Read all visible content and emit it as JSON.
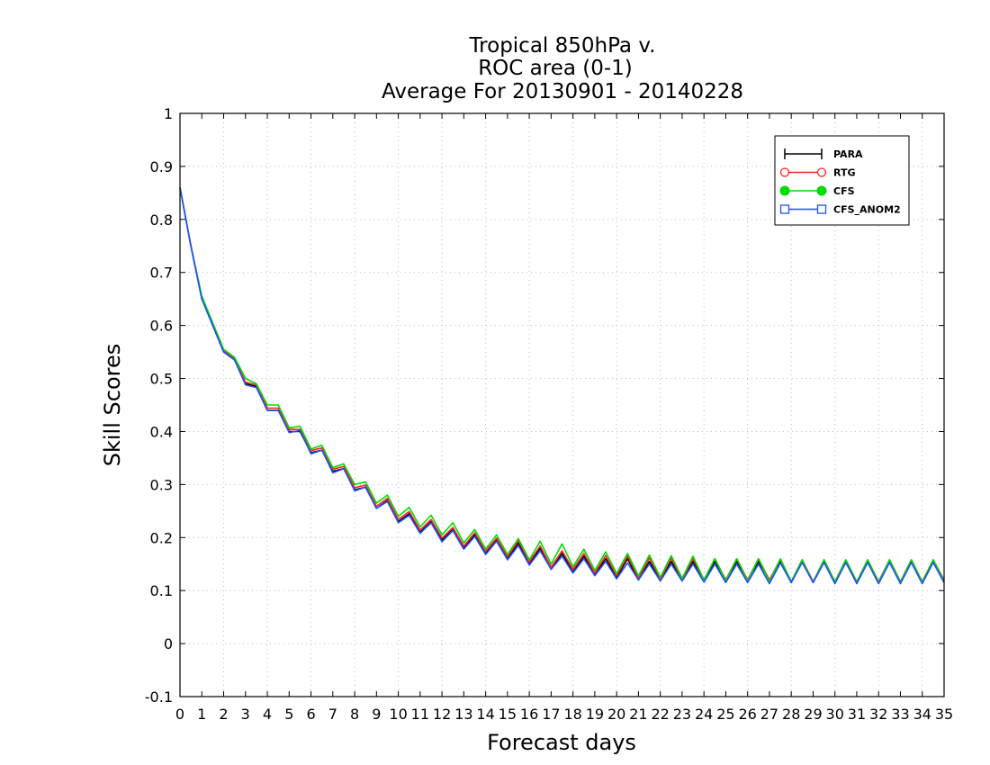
{
  "chart_data": {
    "type": "line",
    "title": [
      "Tropical 850hPa v.",
      "ROC area (0-1)",
      "Average For 20130901 - 20140228"
    ],
    "xlabel": "Forecast days",
    "ylabel": "Skill Scores",
    "xlim": [
      0,
      35
    ],
    "ylim": [
      -0.1,
      1
    ],
    "x_ticks": [
      0,
      1,
      2,
      3,
      4,
      5,
      6,
      7,
      8,
      9,
      10,
      11,
      12,
      13,
      14,
      15,
      16,
      17,
      18,
      19,
      20,
      21,
      22,
      23,
      24,
      25,
      26,
      27,
      28,
      29,
      30,
      31,
      32,
      33,
      34,
      35
    ],
    "y_ticks": [
      -0.1,
      0,
      0.1,
      0.2,
      0.3,
      0.4,
      0.5,
      0.6,
      0.7,
      0.8,
      0.9,
      1
    ],
    "y_tick_labels": [
      "-0.1",
      "0",
      "0.1",
      "0.2",
      "0.3",
      "0.4",
      "0.5",
      "0.6",
      "0.7",
      "0.8",
      "0.9",
      "1"
    ],
    "grid": true,
    "legend_position": "top-right",
    "x": [
      0,
      0.5,
      1,
      1.5,
      2,
      2.5,
      3,
      3.5,
      4,
      4.5,
      5,
      5.5,
      6,
      6.5,
      7,
      7.5,
      8,
      8.5,
      9,
      9.5,
      10,
      10.5,
      11,
      11.5,
      12,
      12.5,
      13,
      13.5,
      14,
      14.5,
      15,
      15.5,
      16,
      16.5,
      17,
      17.5,
      18,
      18.5,
      19,
      19.5,
      20,
      20.5,
      21,
      21.5,
      22,
      22.5,
      23,
      23.5,
      24,
      24.5,
      25,
      25.5,
      26,
      26.5,
      27,
      27.5,
      28,
      28.5,
      29,
      29.5,
      30,
      30.5,
      31,
      31.5,
      32,
      32.5,
      33,
      33.5,
      34,
      34.5,
      35
    ],
    "series": [
      {
        "name": "PARA",
        "color": "#000000",
        "marker": "plus",
        "values": [
          0.86,
          0.75,
          0.65,
          0.6,
          0.55,
          0.535,
          0.49,
          0.485,
          0.44,
          0.44,
          0.4,
          0.4,
          0.36,
          0.365,
          0.325,
          0.33,
          0.29,
          0.295,
          0.255,
          0.27,
          0.23,
          0.245,
          0.21,
          0.23,
          0.195,
          0.215,
          0.18,
          0.205,
          0.17,
          0.195,
          0.16,
          0.19,
          0.15,
          0.18,
          0.14,
          0.17,
          0.135,
          0.165,
          0.13,
          0.16,
          0.125,
          0.16,
          0.12,
          0.155,
          0.12,
          0.155,
          0.12,
          0.155,
          0.12,
          0.155,
          0.12,
          0.155,
          0.12,
          0.155,
          0.12,
          0.155,
          0.115,
          0.155,
          0.115,
          0.155,
          0.115,
          0.155,
          0.115,
          0.155,
          0.115,
          0.155,
          0.115,
          0.155,
          0.115,
          0.155,
          0.115
        ]
      },
      {
        "name": "RTG",
        "color": "#ff2020",
        "marker": "circle-open",
        "values": [
          0.86,
          0.75,
          0.652,
          0.602,
          0.552,
          0.538,
          0.493,
          0.488,
          0.444,
          0.444,
          0.404,
          0.404,
          0.364,
          0.369,
          0.329,
          0.334,
          0.294,
          0.299,
          0.259,
          0.274,
          0.234,
          0.249,
          0.214,
          0.234,
          0.199,
          0.219,
          0.184,
          0.209,
          0.174,
          0.199,
          0.164,
          0.194,
          0.154,
          0.184,
          0.144,
          0.175,
          0.14,
          0.17,
          0.133,
          0.166,
          0.128,
          0.165,
          0.124,
          0.162,
          0.122,
          0.161,
          0.121,
          0.16,
          0.12,
          0.16,
          0.12,
          0.16,
          0.12,
          0.16,
          0.12,
          0.159,
          0.117,
          0.158,
          0.117,
          0.158,
          0.117,
          0.158,
          0.117,
          0.158,
          0.117,
          0.158,
          0.117,
          0.158,
          0.117,
          0.158,
          0.12
        ]
      },
      {
        "name": "CFS",
        "color": "#00dd00",
        "marker": "circle-filled",
        "values": [
          0.86,
          0.75,
          0.655,
          0.605,
          0.555,
          0.54,
          0.5,
          0.49,
          0.45,
          0.45,
          0.407,
          0.41,
          0.367,
          0.374,
          0.332,
          0.339,
          0.3,
          0.305,
          0.265,
          0.28,
          0.24,
          0.257,
          0.22,
          0.242,
          0.205,
          0.228,
          0.19,
          0.215,
          0.178,
          0.205,
          0.168,
          0.198,
          0.158,
          0.193,
          0.15,
          0.188,
          0.145,
          0.178,
          0.138,
          0.173,
          0.132,
          0.17,
          0.128,
          0.167,
          0.125,
          0.166,
          0.123,
          0.165,
          0.12,
          0.16,
          0.118,
          0.16,
          0.118,
          0.16,
          0.117,
          0.16,
          0.117,
          0.158,
          0.116,
          0.158,
          0.116,
          0.158,
          0.116,
          0.158,
          0.116,
          0.158,
          0.116,
          0.158,
          0.116,
          0.158,
          0.118
        ]
      },
      {
        "name": "CFS_ANOM2",
        "color": "#2050ff",
        "marker": "square-open",
        "values": [
          0.86,
          0.75,
          0.65,
          0.6,
          0.55,
          0.535,
          0.488,
          0.483,
          0.44,
          0.44,
          0.398,
          0.402,
          0.358,
          0.365,
          0.322,
          0.33,
          0.288,
          0.295,
          0.255,
          0.268,
          0.228,
          0.242,
          0.208,
          0.228,
          0.192,
          0.213,
          0.178,
          0.202,
          0.168,
          0.193,
          0.158,
          0.185,
          0.148,
          0.175,
          0.14,
          0.165,
          0.133,
          0.16,
          0.128,
          0.155,
          0.122,
          0.152,
          0.12,
          0.15,
          0.118,
          0.15,
          0.118,
          0.15,
          0.116,
          0.15,
          0.115,
          0.15,
          0.115,
          0.15,
          0.113,
          0.152,
          0.115,
          0.153,
          0.115,
          0.153,
          0.113,
          0.153,
          0.113,
          0.153,
          0.113,
          0.153,
          0.113,
          0.153,
          0.113,
          0.153,
          0.115
        ]
      }
    ]
  }
}
